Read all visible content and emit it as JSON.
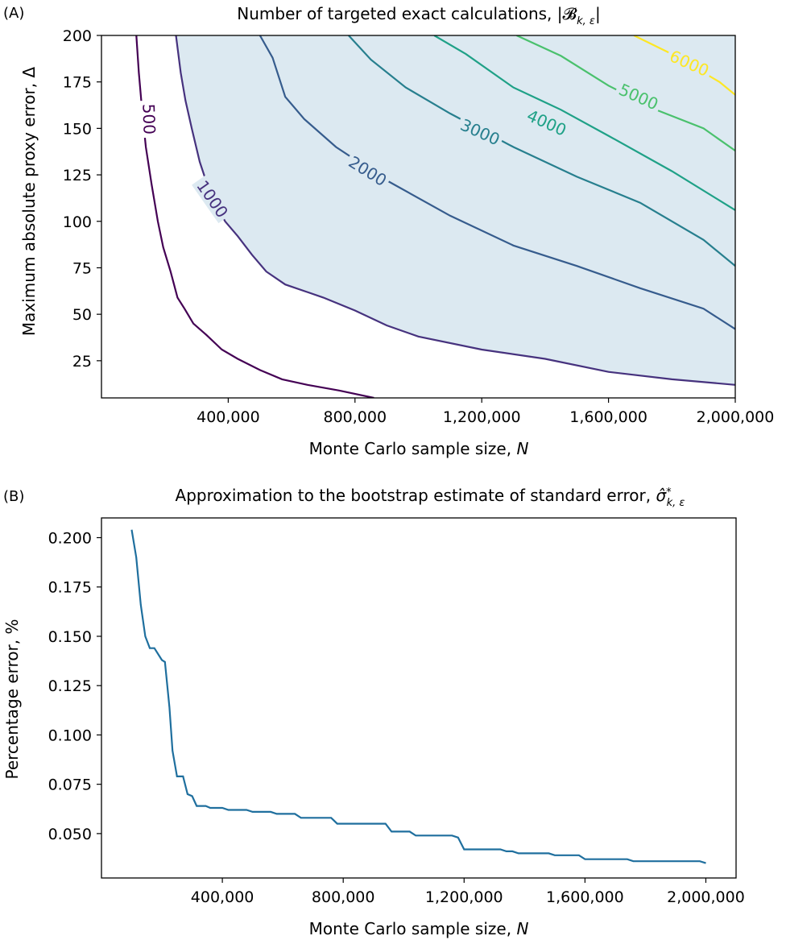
{
  "chart_data": [
    {
      "panel": "(A)",
      "type": "contour",
      "title": "Number of targeted exact calculations, |𝓑",
      "title_sub": "k, ε",
      "title_tail": "|",
      "xlabel": "Monte Carlo sample size, ",
      "xlabel_italic": "N",
      "ylabel": "Maximum absolute proxy error, Δ",
      "xlim": [
        0,
        2000000
      ],
      "ylim": [
        5,
        200
      ],
      "x_ticks": [
        400000,
        800000,
        1200000,
        1600000,
        2000000
      ],
      "x_tick_labels": [
        "400,000",
        "800,000",
        "1,200,000",
        "1,600,000",
        "2,000,000"
      ],
      "y_ticks": [
        25,
        50,
        75,
        100,
        125,
        150,
        175,
        200
      ],
      "y_tick_labels": [
        "25",
        "50",
        "75",
        "100",
        "125",
        "150",
        "175",
        "200"
      ],
      "shaded_region_color": "#dce9f1",
      "levels": [
        {
          "level": 500,
          "label": "500",
          "color": "#440154",
          "points": [
            [
              110000,
              200
            ],
            [
              118000,
              180
            ],
            [
              128000,
              160
            ],
            [
              140000,
              140
            ],
            [
              158000,
              120
            ],
            [
              178000,
              100
            ],
            [
              195000,
              86
            ],
            [
              218000,
              73
            ],
            [
              240000,
              59
            ],
            [
              262000,
              53
            ],
            [
              290000,
              45
            ],
            [
              330000,
              39
            ],
            [
              380000,
              31
            ],
            [
              430000,
              26
            ],
            [
              500000,
              20
            ],
            [
              570000,
              15
            ],
            [
              650000,
              12
            ],
            [
              750000,
              9
            ],
            [
              860000,
              5
            ]
          ]
        },
        {
          "level": 1000,
          "label": "1000",
          "color": "#46327e",
          "points": [
            [
              235000,
              200
            ],
            [
              250000,
              180
            ],
            [
              265000,
              165
            ],
            [
              285000,
              150
            ],
            [
              310000,
              132
            ],
            [
              345000,
              114
            ],
            [
              390000,
              100
            ],
            [
              430000,
              92
            ],
            [
              475000,
              82
            ],
            [
              520000,
              73
            ],
            [
              580000,
              66
            ],
            [
              700000,
              59
            ],
            [
              800000,
              52
            ],
            [
              900000,
              44
            ],
            [
              1000000,
              38
            ],
            [
              1200000,
              31
            ],
            [
              1400000,
              26
            ],
            [
              1600000,
              19
            ],
            [
              1800000,
              15
            ],
            [
              2000000,
              12
            ]
          ]
        },
        {
          "level": 2000,
          "label": "2000",
          "color": "#365c8d",
          "points": [
            [
              500000,
              200
            ],
            [
              540000,
              188
            ],
            [
              580000,
              167
            ],
            [
              640000,
              155
            ],
            [
              740000,
              140
            ],
            [
              900000,
              122
            ],
            [
              1100000,
              103
            ],
            [
              1300000,
              87
            ],
            [
              1500000,
              76
            ],
            [
              1700000,
              64
            ],
            [
              1900000,
              53
            ],
            [
              2000000,
              42
            ]
          ]
        },
        {
          "level": 3000,
          "label": "3000",
          "color": "#277f8e",
          "points": [
            [
              780000,
              200
            ],
            [
              850000,
              187
            ],
            [
              960000,
              172
            ],
            [
              1100000,
              158
            ],
            [
              1300000,
              140
            ],
            [
              1500000,
              124
            ],
            [
              1700000,
              110
            ],
            [
              1900000,
              90
            ],
            [
              2000000,
              76
            ]
          ]
        },
        {
          "level": 4000,
          "label": "4000",
          "color": "#1fa187",
          "points": [
            [
              1050000,
              200
            ],
            [
              1150000,
              190
            ],
            [
              1300000,
              172
            ],
            [
              1450000,
              160
            ],
            [
              1600000,
              146
            ],
            [
              1800000,
              127
            ],
            [
              2000000,
              106
            ]
          ]
        },
        {
          "level": 5000,
          "label": "5000",
          "color": "#4ac16d",
          "points": [
            [
              1310000,
              200
            ],
            [
              1450000,
              189
            ],
            [
              1600000,
              173
            ],
            [
              1750000,
              160
            ],
            [
              1900000,
              150
            ],
            [
              2000000,
              138
            ]
          ]
        },
        {
          "level": 6000,
          "label": "6000",
          "color": "#fde725",
          "points": [
            [
              1680000,
              200
            ],
            [
              1800000,
              190
            ],
            [
              1950000,
              175
            ],
            [
              2000000,
              168
            ]
          ]
        }
      ],
      "contour_labels": [
        {
          "text": "500",
          "level": 500,
          "x": 150000,
          "y": 155,
          "angle": 88
        },
        {
          "text": "1000",
          "level": 1000,
          "x": 350000,
          "y": 112,
          "angle": 55
        },
        {
          "text": "2000",
          "level": 2000,
          "x": 840000,
          "y": 127,
          "angle": 32
        },
        {
          "text": "3000",
          "level": 3000,
          "x": 1195000,
          "y": 148,
          "angle": 24
        },
        {
          "text": "4000",
          "level": 4000,
          "x": 1405000,
          "y": 153,
          "angle": 24
        },
        {
          "text": "5000",
          "level": 5000,
          "x": 1695000,
          "y": 167,
          "angle": 24
        },
        {
          "text": "6000",
          "level": 6000,
          "x": 1855000,
          "y": 185,
          "angle": 24
        }
      ]
    },
    {
      "panel": "(B)",
      "type": "line",
      "title": "Approximation to the bootstrap estimate of standard error, ",
      "title_math": "σ̂",
      "title_sup": "*",
      "title_sub": "k, ε",
      "xlabel": "Monte Carlo sample size, ",
      "xlabel_italic": "N",
      "ylabel": "Percentage error, %",
      "xlim": [
        0,
        2100000
      ],
      "ylim": [
        0.0275,
        0.21
      ],
      "x_ticks": [
        400000,
        800000,
        1200000,
        1600000,
        2000000
      ],
      "x_tick_labels": [
        "400,000",
        "800,000",
        "1,200,000",
        "1,600,000",
        "2,000,000"
      ],
      "y_ticks": [
        0.05,
        0.075,
        0.1,
        0.125,
        0.15,
        0.175,
        0.2
      ],
      "y_tick_labels": [
        "0.050",
        "0.075",
        "0.100",
        "0.125",
        "0.150",
        "0.175",
        "0.200"
      ],
      "color": "#1f6f9e",
      "x": [
        100000,
        115000,
        130000,
        145000,
        160000,
        175000,
        200000,
        210000,
        225000,
        235000,
        250000,
        260000,
        270000,
        285000,
        300000,
        315000,
        330000,
        345000,
        360000,
        380000,
        400000,
        420000,
        440000,
        460000,
        480000,
        500000,
        520000,
        540000,
        560000,
        580000,
        600000,
        620000,
        640000,
        660000,
        680000,
        700000,
        720000,
        740000,
        760000,
        780000,
        800000,
        820000,
        840000,
        860000,
        880000,
        900000,
        920000,
        940000,
        960000,
        980000,
        1000000,
        1020000,
        1040000,
        1060000,
        1080000,
        1100000,
        1120000,
        1140000,
        1160000,
        1180000,
        1200000,
        1220000,
        1240000,
        1260000,
        1280000,
        1300000,
        1320000,
        1340000,
        1360000,
        1380000,
        1400000,
        1420000,
        1440000,
        1460000,
        1480000,
        1500000,
        1520000,
        1540000,
        1560000,
        1580000,
        1600000,
        1620000,
        1640000,
        1660000,
        1680000,
        1700000,
        1720000,
        1740000,
        1760000,
        1780000,
        1800000,
        1820000,
        1840000,
        1860000,
        1880000,
        1900000,
        1920000,
        1940000,
        1960000,
        1980000,
        2000000
      ],
      "y": [
        0.204,
        0.19,
        0.166,
        0.15,
        0.144,
        0.144,
        0.138,
        0.137,
        0.114,
        0.092,
        0.079,
        0.079,
        0.079,
        0.07,
        0.069,
        0.064,
        0.064,
        0.064,
        0.063,
        0.063,
        0.063,
        0.062,
        0.062,
        0.062,
        0.062,
        0.061,
        0.061,
        0.061,
        0.061,
        0.06,
        0.06,
        0.06,
        0.06,
        0.058,
        0.058,
        0.058,
        0.058,
        0.058,
        0.058,
        0.055,
        0.055,
        0.055,
        0.055,
        0.055,
        0.055,
        0.055,
        0.055,
        0.055,
        0.051,
        0.051,
        0.051,
        0.051,
        0.049,
        0.049,
        0.049,
        0.049,
        0.049,
        0.049,
        0.049,
        0.048,
        0.042,
        0.042,
        0.042,
        0.042,
        0.042,
        0.042,
        0.042,
        0.041,
        0.041,
        0.04,
        0.04,
        0.04,
        0.04,
        0.04,
        0.04,
        0.039,
        0.039,
        0.039,
        0.039,
        0.039,
        0.037,
        0.037,
        0.037,
        0.037,
        0.037,
        0.037,
        0.037,
        0.037,
        0.036,
        0.036,
        0.036,
        0.036,
        0.036,
        0.036,
        0.036,
        0.036,
        0.036,
        0.036,
        0.036,
        0.036,
        0.035
      ]
    }
  ]
}
